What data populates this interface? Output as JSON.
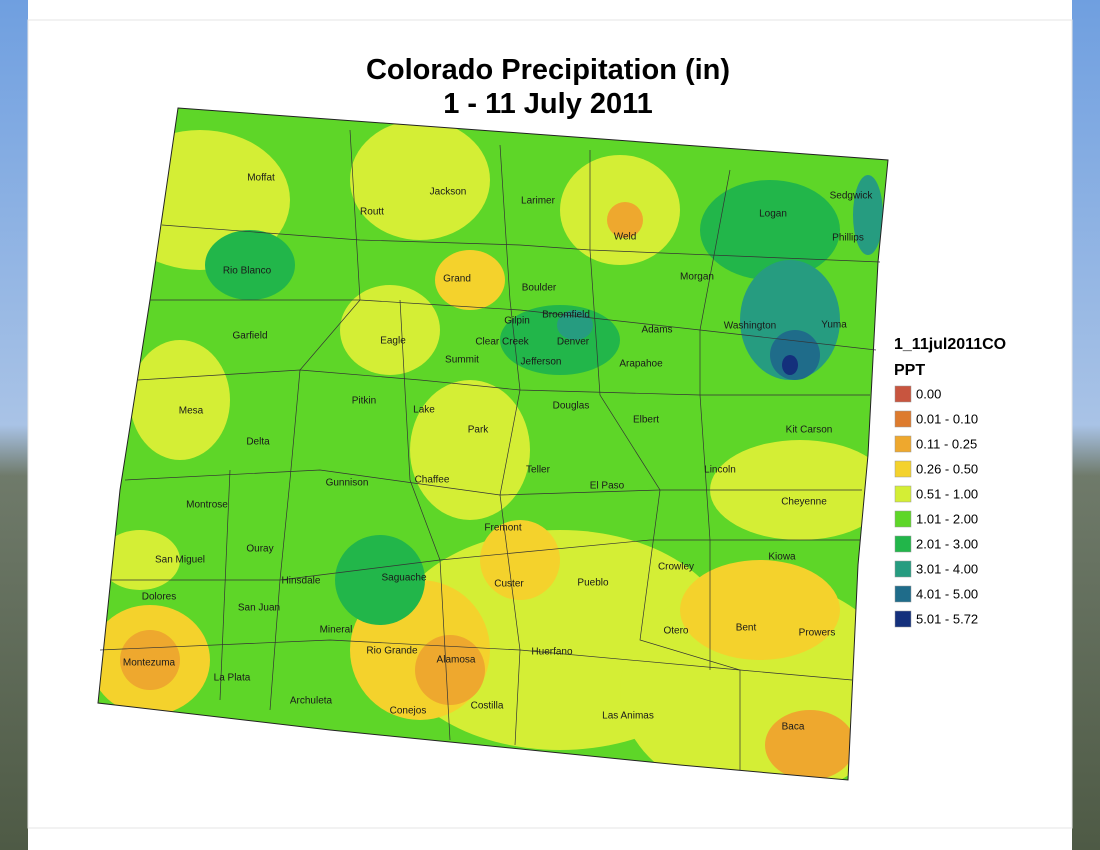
{
  "title": [
    "Colorado Precipitation (in)",
    "1 - 11 July 2011"
  ],
  "legend": {
    "name": "1_11jul2011CO",
    "field": "PPT",
    "items": [
      {
        "label": "0.00",
        "color": "#c8553f"
      },
      {
        "label": "0.01 - 0.10",
        "color": "#dd7b2e"
      },
      {
        "label": "0.11 - 0.25",
        "color": "#eea82e"
      },
      {
        "label": "0.26 - 0.50",
        "color": "#f4d22c"
      },
      {
        "label": "0.51 - 1.00",
        "color": "#d4ee35"
      },
      {
        "label": "1.01 - 2.00",
        "color": "#5ed628"
      },
      {
        "label": "2.01 - 3.00",
        "color": "#22b64a"
      },
      {
        "label": "3.01 - 4.00",
        "color": "#269c80"
      },
      {
        "label": "4.01 - 5.00",
        "color": "#1f6c8a"
      },
      {
        "label": "5.01 - 5.72",
        "color": "#14307c"
      }
    ]
  },
  "counties": [
    "Moffat",
    "Routt",
    "Jackson",
    "Larimer",
    "Weld",
    "Logan",
    "Sedgwick",
    "Phillips",
    "Rio Blanco",
    "Grand",
    "Boulder",
    "Morgan",
    "Broomfield",
    "Gilpin",
    "Garfield",
    "Eagle",
    "Clear Creek",
    "Denver",
    "Adams",
    "Washington",
    "Yuma",
    "Summit",
    "Jefferson",
    "Arapahoe",
    "Mesa",
    "Pitkin",
    "Lake",
    "Douglas",
    "Elbert",
    "Kit Carson",
    "Delta",
    "Park",
    "Teller",
    "Lincoln",
    "Gunnison",
    "Chaffee",
    "El Paso",
    "Montrose",
    "Cheyenne",
    "Fremont",
    "Ouray",
    "San Miguel",
    "Hinsdale",
    "Saguache",
    "Custer",
    "Pueblo",
    "Crowley",
    "Kiowa",
    "Dolores",
    "San Juan",
    "Mineral",
    "Otero",
    "Bent",
    "Prowers",
    "Rio Grande",
    "Alamosa",
    "Huerfano",
    "Montezuma",
    "La Plata",
    "Archuleta",
    "Costilla",
    "Conejos",
    "Las Animas",
    "Baca"
  ]
}
